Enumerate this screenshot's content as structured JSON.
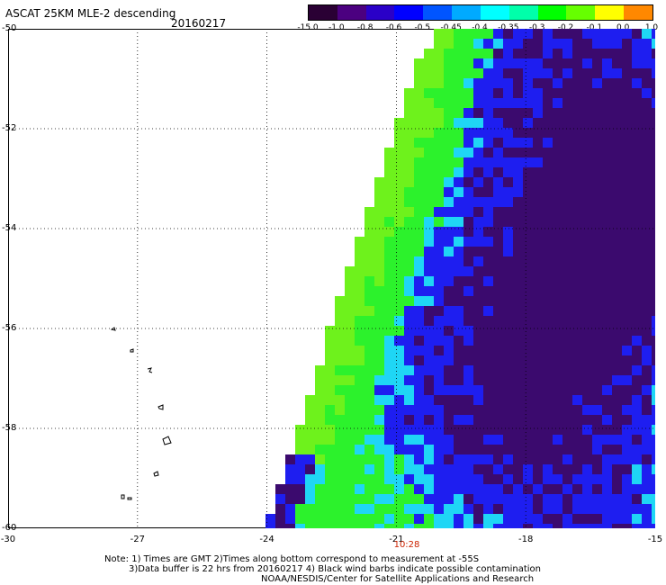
{
  "header": {
    "title": "ASCAT 25KM MLE-2 descending",
    "date": "20160217"
  },
  "colorbar": {
    "labels": [
      "-15.0",
      "-1.0",
      "-0.8",
      "-0.6",
      "-0.5",
      "-0.45",
      "-0.4",
      "-0.35",
      "-0.3",
      "-0.2",
      "-0.1",
      "0.0",
      "1.0"
    ],
    "colors": [
      "#2a0034",
      "#4b0080",
      "#2a00c8",
      "#0000ff",
      "#0055ff",
      "#00aaff",
      "#00ffff",
      "#00ffaa",
      "#00ff00",
      "#66ff00",
      "#ffff00",
      "#ff8800",
      "#ff0000"
    ]
  },
  "map": {
    "lat_labels": [
      "-50",
      "-52",
      "-54",
      "-56",
      "-58",
      "-60"
    ],
    "lon_labels": [
      "-30",
      "-27",
      "-24",
      "-21",
      "-18",
      "-15"
    ],
    "time_label": "10:28",
    "extent": {
      "lon": [
        -30,
        -15
      ],
      "lat": [
        -60,
        -50
      ]
    },
    "swath_palette": {
      "dark": "#3b0a6e",
      "blue": "#1e1ef0",
      "cyan": "#1fd6f5",
      "green": "#2cf22c",
      "lime": "#6ef21c"
    }
  },
  "notes": {
    "line1": "Note: 1) Times are GMT 2)Times along bottom correspond to measurement at -55S",
    "line2": "3)Data buffer is 22 hrs from 20160217 4) Black wind barbs indicate possible contamination",
    "line3": "NOAA/NESDIS/Center for Satellite Applications and Research"
  }
}
